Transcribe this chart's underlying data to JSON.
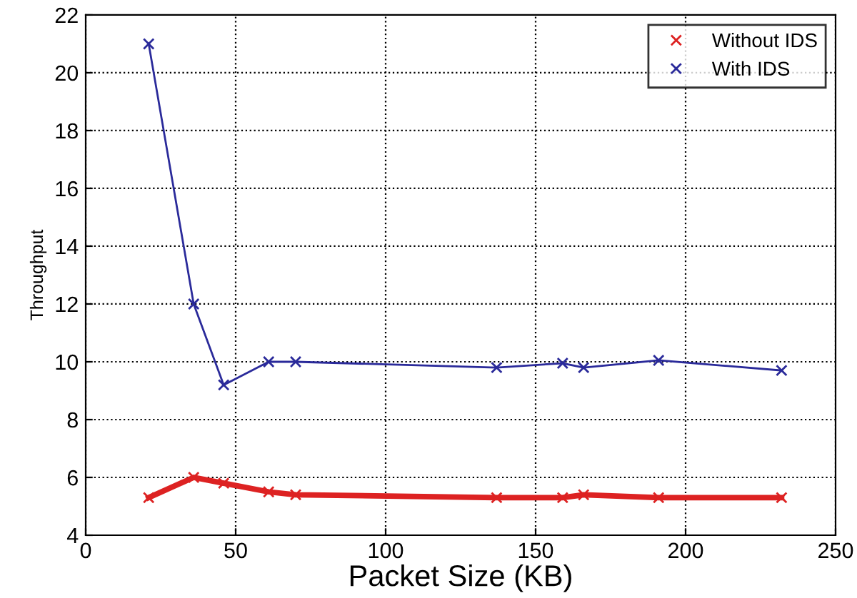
{
  "chart_data": {
    "type": "line",
    "xlabel": "Packet Size (KB)",
    "ylabel": "Throughput",
    "x": [
      21,
      36,
      46,
      61,
      70,
      137,
      159,
      166,
      191,
      232
    ],
    "series": [
      {
        "name": "Without IDS",
        "color": "#dd2222",
        "values": [
          5.3,
          6.0,
          5.8,
          5.5,
          5.4,
          5.3,
          5.3,
          5.4,
          5.3,
          5.3
        ]
      },
      {
        "name": "With IDS",
        "color": "#2a2a9a",
        "values": [
          21,
          12,
          9.2,
          10,
          10,
          9.8,
          9.95,
          9.8,
          10.05,
          9.7
        ]
      }
    ],
    "xlim": [
      0,
      250
    ],
    "xticks": [
      0,
      50,
      100,
      150,
      200,
      250
    ],
    "ylim": [
      4,
      22
    ],
    "yticks": [
      4,
      6,
      8,
      10,
      12,
      14,
      16,
      18,
      20,
      22
    ],
    "grid": true,
    "legend": "top right",
    "marker": "cross",
    "line_style": "solid"
  }
}
